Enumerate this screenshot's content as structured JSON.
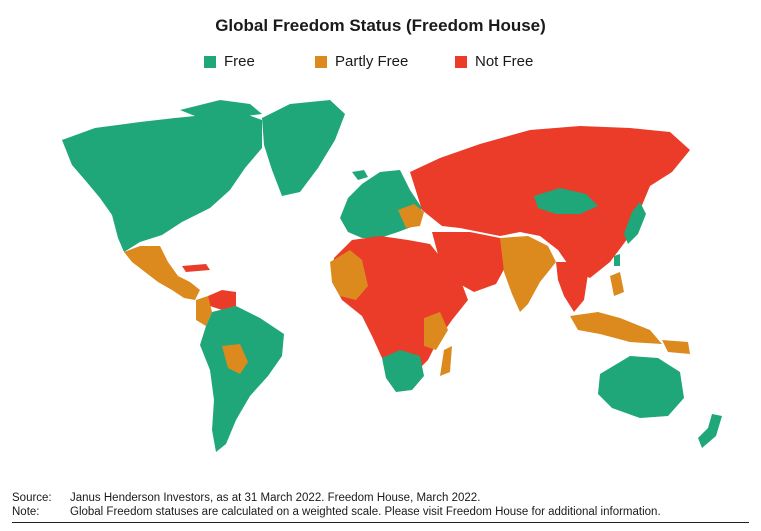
{
  "title": "Global Freedom Status (Freedom House)",
  "colors": {
    "free": "#1fa77a",
    "partly_free": "#dc8a1e",
    "not_free": "#ea3c28",
    "ocean": "#ffffff"
  },
  "legend": [
    {
      "label": "Free",
      "color": "#1fa77a"
    },
    {
      "label": "Partly Free",
      "color": "#dc8a1e"
    },
    {
      "label": "Not Free",
      "color": "#ea3c28"
    }
  ],
  "source": {
    "label": "Source:",
    "text": "Janus Henderson Investors, as at 31 March 2022. Freedom House, March 2022."
  },
  "note": {
    "label": "Note:",
    "text": "Global Freedom statuses are calculated on a weighted scale. Please visit Freedom House for additional information."
  }
}
